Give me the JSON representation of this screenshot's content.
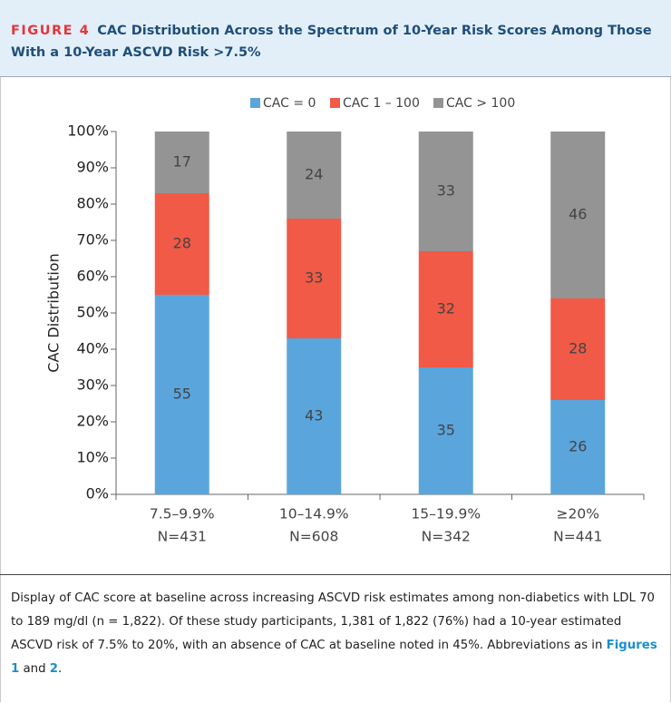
{
  "figure": {
    "label": "FIGURE 4",
    "title": "CAC Distribution Across the Spectrum of 10-Year Risk Scores Among Those With a 10-Year ASCVD Risk >7.5%"
  },
  "chart_data": {
    "type": "stacked-bar",
    "y_label": "CAC Distribution",
    "categories": [
      [
        "7.5–9.9%",
        "N=431"
      ],
      [
        "10–14.9%",
        "N=608"
      ],
      [
        "15–19.9%",
        "N=342"
      ],
      [
        "≥20%",
        "N=441"
      ]
    ],
    "series": [
      {
        "name": "CAC = 0",
        "color": "#5aa5dc",
        "values": [
          55,
          43,
          35,
          26
        ]
      },
      {
        "name": "CAC 1 – 100",
        "color": "#f05a46",
        "values": [
          28,
          33,
          32,
          28
        ]
      },
      {
        "name": "CAC > 100",
        "color": "#949494",
        "values": [
          17,
          24,
          33,
          46
        ]
      }
    ],
    "ylim": [
      0,
      100
    ],
    "yticks": [
      {
        "value": 0,
        "label": "0%"
      },
      {
        "value": 10,
        "label": "10%"
      },
      {
        "value": 20,
        "label": "20%"
      },
      {
        "value": 30,
        "label": "30%"
      },
      {
        "value": 40,
        "label": "40%"
      },
      {
        "value": 50,
        "label": "50%"
      },
      {
        "value": 60,
        "label": "60%"
      },
      {
        "value": 70,
        "label": "70%"
      },
      {
        "value": 80,
        "label": "80%"
      },
      {
        "value": 90,
        "label": "90%"
      },
      {
        "value": 100,
        "label": "100%"
      }
    ]
  },
  "caption": [
    "Display of CAC score at baseline across increasing ASCVD risk estimates among non-diabetics with LDL 70 to 189 mg/dl (n = 1,822). Of these study participants, 1,381 of 1,822 (76%) had a 10-year estimated ASCVD risk of 7.5% to 20%, with an absence of CAC at baseline noted in 45%. Abbreviations as in ",
    "Figures 1",
    " and ",
    "2",
    "."
  ]
}
